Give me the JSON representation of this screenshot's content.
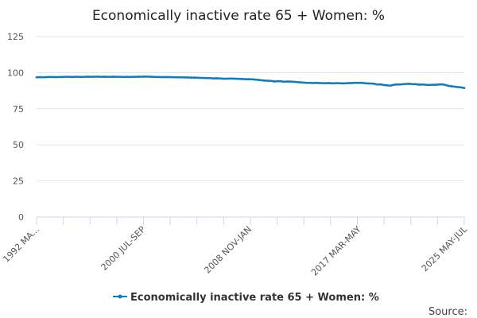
{
  "chart_data": {
    "type": "line",
    "title": "Economically inactive rate 65 + Women: %",
    "xlabel": "",
    "ylabel": "",
    "ylim": [
      0,
      125
    ],
    "yticks": [
      0,
      25,
      50,
      75,
      100,
      125
    ],
    "grid": true,
    "legend_position": "bottom-center",
    "x_tick_labels": [
      "1992 MA...",
      "2000 JUL-SEP",
      "2008 NOV-JAN",
      "2017 MAR-MAY",
      "2025 MAY-JUL"
    ],
    "x_tick_label_index": [
      0,
      33,
      66,
      100,
      133
    ],
    "series": [
      {
        "name": "Economically inactive rate 65 + Women: %",
        "color": "#0f7dbb",
        "values": [
          96.8,
          96.9,
          96.8,
          96.9,
          97.0,
          97.0,
          96.9,
          97.0,
          97.0,
          97.1,
          97.1,
          97.0,
          97.1,
          97.1,
          97.0,
          97.1,
          97.2,
          97.1,
          97.2,
          97.2,
          97.1,
          97.2,
          97.1,
          97.1,
          97.2,
          97.1,
          97.1,
          97.0,
          97.1,
          97.0,
          97.1,
          97.1,
          97.2,
          97.2,
          97.3,
          97.2,
          97.1,
          97.0,
          97.0,
          96.9,
          97.0,
          96.9,
          96.9,
          96.8,
          96.8,
          96.8,
          96.7,
          96.7,
          96.6,
          96.6,
          96.5,
          96.4,
          96.3,
          96.2,
          96.2,
          96.0,
          96.1,
          96.0,
          95.8,
          95.8,
          95.9,
          95.9,
          95.8,
          95.7,
          95.6,
          95.5,
          95.5,
          95.4,
          95.2,
          95.0,
          94.7,
          94.5,
          94.4,
          94.3,
          93.9,
          94.1,
          94.0,
          93.7,
          93.9,
          93.8,
          93.7,
          93.5,
          93.3,
          93.1,
          92.9,
          92.9,
          92.8,
          92.9,
          92.8,
          92.7,
          92.7,
          92.8,
          92.6,
          92.7,
          92.7,
          92.6,
          92.6,
          92.8,
          92.8,
          93.0,
          92.9,
          93.0,
          92.7,
          92.5,
          92.5,
          92.3,
          91.8,
          91.9,
          91.5,
          91.2,
          91.0,
          91.6,
          91.8,
          91.8,
          92.0,
          92.2,
          92.3,
          92.0,
          92.0,
          91.7,
          91.8,
          91.6,
          91.5,
          91.6,
          91.6,
          91.8,
          91.9,
          91.6,
          90.9,
          90.6,
          90.3,
          90.0,
          89.8,
          89.4
        ]
      }
    ]
  },
  "footer": {
    "source_label": "Source:"
  }
}
